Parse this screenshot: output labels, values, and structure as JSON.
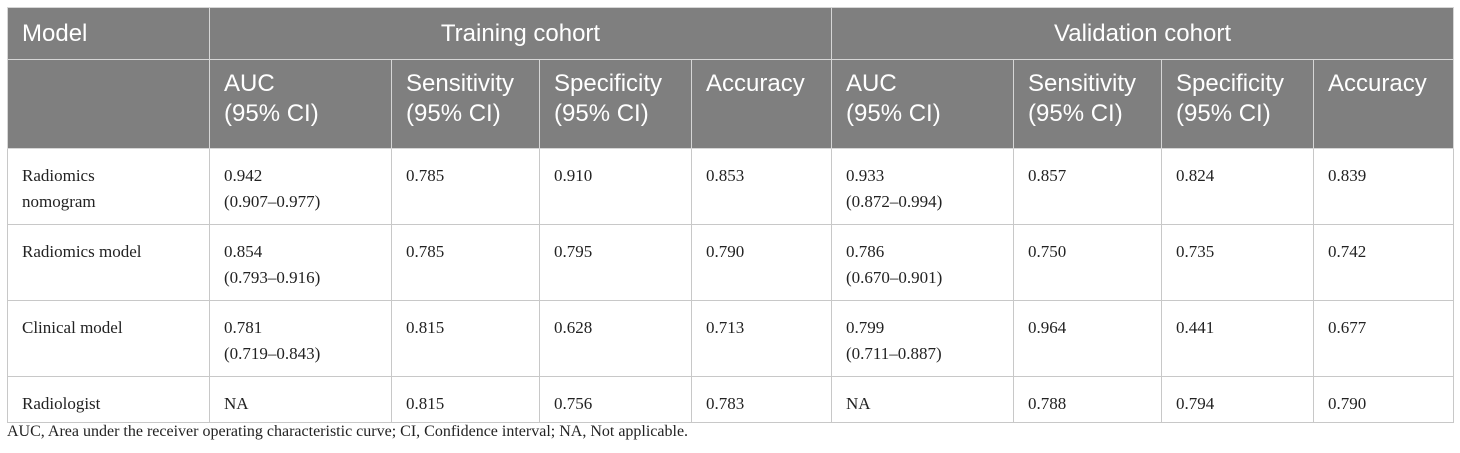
{
  "table": {
    "header": {
      "model_label": "Model",
      "training_group": "Training cohort",
      "validation_group": "Validation cohort",
      "training_columns": [
        {
          "line1": "AUC",
          "line2": "(95% CI)"
        },
        {
          "line1": "Sensitivity",
          "line2": "(95% CI)"
        },
        {
          "line1": "Specificity",
          "line2": "(95% CI)"
        },
        {
          "line1": "Accuracy",
          "line2": ""
        }
      ],
      "validation_columns": [
        {
          "line1": "AUC",
          "line2": "(95% CI)"
        },
        {
          "line1": "Sensitivity",
          "line2": "(95% CI)"
        },
        {
          "line1": "Specificity",
          "line2": "(95% CI)"
        },
        {
          "line1": "Accuracy",
          "line2": ""
        }
      ]
    },
    "rows": [
      {
        "model": {
          "line1": "Radiomics",
          "line2": "nomogram"
        },
        "train_auc": {
          "value": "0.942",
          "ci": "(0.907–0.977)"
        },
        "train_sensitivity": "0.785",
        "train_specificity": "0.910",
        "train_accuracy": "0.853",
        "val_auc": {
          "value": "0.933",
          "ci": "(0.872–0.994)"
        },
        "val_sensitivity": "0.857",
        "val_specificity": "0.824",
        "val_accuracy": "0.839"
      },
      {
        "model": {
          "line1": "Radiomics model",
          "line2": ""
        },
        "train_auc": {
          "value": "0.854",
          "ci": "(0.793–0.916)"
        },
        "train_sensitivity": "0.785",
        "train_specificity": "0.795",
        "train_accuracy": "0.790",
        "val_auc": {
          "value": "0.786",
          "ci": "(0.670–0.901)"
        },
        "val_sensitivity": "0.750",
        "val_specificity": "0.735",
        "val_accuracy": "0.742"
      },
      {
        "model": {
          "line1": "Clinical model",
          "line2": ""
        },
        "train_auc": {
          "value": "0.781",
          "ci": "(0.719–0.843)"
        },
        "train_sensitivity": "0.815",
        "train_specificity": "0.628",
        "train_accuracy": "0.713",
        "val_auc": {
          "value": "0.799",
          "ci": "(0.711–0.887)"
        },
        "val_sensitivity": "0.964",
        "val_specificity": "0.441",
        "val_accuracy": "0.677"
      },
      {
        "model": {
          "line1": "Radiologist",
          "line2": ""
        },
        "train_auc": {
          "value": "NA",
          "ci": ""
        },
        "train_sensitivity": "0.815",
        "train_specificity": "0.756",
        "train_accuracy": "0.783",
        "val_auc": {
          "value": "NA",
          "ci": ""
        },
        "val_sensitivity": "0.788",
        "val_specificity": "0.794",
        "val_accuracy": "0.790"
      }
    ]
  },
  "footnote": "AUC, Area under the receiver operating characteristic curve; CI, Confidence interval; NA, Not applicable."
}
